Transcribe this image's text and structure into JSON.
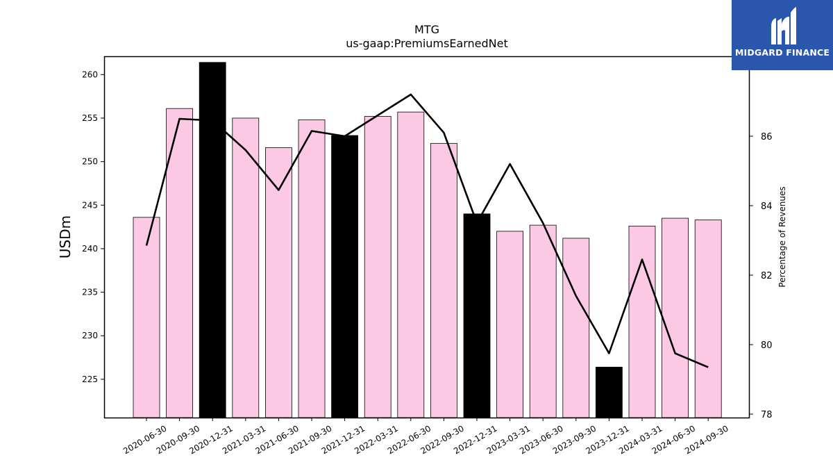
{
  "chart_data": {
    "type": "bar",
    "title": "MTG",
    "subtitle": "us-gaap:PremiumsEarnedNet",
    "ylabel": "USDm",
    "y2label": "Percentage of Revenues",
    "ylim": [
      220.6,
      262.1
    ],
    "y2lim": [
      77.9,
      88.3
    ],
    "yticks": [
      225,
      230,
      235,
      240,
      245,
      250,
      255,
      260
    ],
    "y2ticks": [
      78,
      80,
      82,
      84,
      86
    ],
    "categories": [
      "2020-06-30",
      "2020-09-30",
      "2020-12-31",
      "2021-03-31",
      "2021-06-30",
      "2021-09-30",
      "2021-12-31",
      "2022-03-31",
      "2022-06-30",
      "2022-09-30",
      "2022-12-31",
      "2023-03-31",
      "2023-06-30",
      "2023-09-30",
      "2023-12-31",
      "2024-03-31",
      "2024-06-30",
      "2024-09-30"
    ],
    "series": [
      {
        "kind": "bar",
        "axis": "left",
        "values": [
          243.6,
          256.1,
          261.4,
          255.0,
          251.6,
          254.8,
          253.0,
          255.2,
          255.7,
          252.1,
          244.0,
          242.0,
          242.7,
          241.2,
          226.4,
          242.6,
          243.5,
          243.3
        ],
        "colors": [
          "#fbc9e3",
          "#fbc9e3",
          "#000000",
          "#fbc9e3",
          "#fbc9e3",
          "#fbc9e3",
          "#000000",
          "#fbc9e3",
          "#fbc9e3",
          "#fbc9e3",
          "#000000",
          "#fbc9e3",
          "#fbc9e3",
          "#fbc9e3",
          "#000000",
          "#fbc9e3",
          "#fbc9e3",
          "#fbc9e3"
        ]
      },
      {
        "kind": "line",
        "axis": "right",
        "color": "#000000",
        "values": [
          82.85,
          86.5,
          86.45,
          85.6,
          84.45,
          86.15,
          86.0,
          86.6,
          87.2,
          86.1,
          83.5,
          85.2,
          83.5,
          81.4,
          79.75,
          82.45,
          79.75,
          79.35
        ]
      }
    ],
    "grid": false,
    "legend": "none"
  },
  "logo": {
    "text": "MIDGARD FINANCE",
    "bg": "#2a57ad"
  }
}
